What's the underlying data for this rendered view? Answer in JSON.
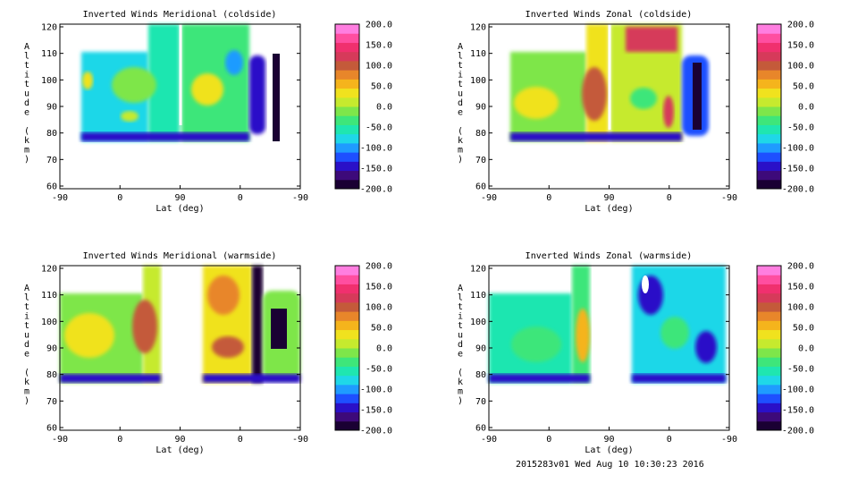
{
  "figure": {
    "footer": "2015283v01 Wed Aug 10 10:30:23 2016",
    "colorbar_ticks": [
      "200.0",
      "150.0",
      "100.0",
      "50.0",
      "0.0",
      "-50.0",
      "-100.0",
      "-150.0",
      "-200.0"
    ],
    "colorbar_colors": [
      "#1a0033",
      "#3d0a7a",
      "#2a10c8",
      "#1e4fff",
      "#1f9bff",
      "#1fd7e8",
      "#1fe6b0",
      "#3ee67a",
      "#7ee64a",
      "#c6ea2e",
      "#f0e21e",
      "#f5b41c",
      "#e8862a",
      "#c45a3a",
      "#d63a5a",
      "#f0306e",
      "#ff4ea0",
      "#ff7ee0"
    ],
    "colorbar_range": [
      -200,
      200
    ]
  },
  "chart_data": [
    {
      "type": "contour",
      "title": "Inverted Winds Meridional (coldside)",
      "xlabel": "Lat (deg)",
      "ylabel": "Altitude (km)",
      "ylabel_chars": [
        "A",
        "l",
        "t",
        "i",
        "t",
        "u",
        "d",
        "e",
        "",
        "(",
        "k",
        "m",
        ")"
      ],
      "x_ticks": [
        "-90",
        "0",
        "90",
        "0",
        "-90"
      ],
      "y_ticks": [
        "120",
        "110",
        "100",
        "90",
        "80",
        "70",
        "60"
      ],
      "ylim": [
        60,
        120
      ],
      "colorbar": {
        "range": [
          -200,
          200
        ],
        "ticks": [
          "200.0",
          "150.0",
          "100.0",
          "50.0",
          "0.0",
          "-50.0",
          "-100.0",
          "-150.0",
          "-200.0"
        ]
      }
    },
    {
      "type": "contour",
      "title": "Inverted Winds Zonal (coldside)",
      "xlabel": "Lat (deg)",
      "ylabel": "Altitude (km)",
      "ylabel_chars": [
        "A",
        "l",
        "t",
        "i",
        "t",
        "u",
        "d",
        "e",
        "",
        "(",
        "k",
        "m",
        ")"
      ],
      "x_ticks": [
        "-90",
        "0",
        "90",
        "0",
        "-90"
      ],
      "y_ticks": [
        "120",
        "110",
        "100",
        "90",
        "80",
        "70",
        "60"
      ],
      "ylim": [
        60,
        120
      ],
      "colorbar": {
        "range": [
          -200,
          200
        ],
        "ticks": [
          "200.0",
          "150.0",
          "100.0",
          "50.0",
          "0.0",
          "-50.0",
          "-100.0",
          "-150.0",
          "-200.0"
        ]
      }
    },
    {
      "type": "contour",
      "title": "Inverted Winds Meridional (warmside)",
      "xlabel": "Lat (deg)",
      "ylabel": "Altitude (km)",
      "ylabel_chars": [
        "A",
        "l",
        "t",
        "i",
        "t",
        "u",
        "d",
        "e",
        "",
        "(",
        "k",
        "m",
        ")"
      ],
      "x_ticks": [
        "-90",
        "0",
        "90",
        "0",
        "-90"
      ],
      "y_ticks": [
        "120",
        "110",
        "100",
        "90",
        "80",
        "70",
        "60"
      ],
      "ylim": [
        60,
        120
      ],
      "colorbar": {
        "range": [
          -200,
          200
        ],
        "ticks": [
          "200.0",
          "150.0",
          "100.0",
          "50.0",
          "0.0",
          "-50.0",
          "-100.0",
          "-150.0",
          "-200.0"
        ]
      }
    },
    {
      "type": "contour",
      "title": "Inverted Winds Zonal (warmside)",
      "xlabel": "Lat (deg)",
      "ylabel": "Altitude (km)",
      "ylabel_chars": [
        "A",
        "l",
        "t",
        "i",
        "t",
        "u",
        "d",
        "e",
        "",
        "(",
        "k",
        "m",
        ")"
      ],
      "x_ticks": [
        "-90",
        "0",
        "90",
        "0",
        "-90"
      ],
      "y_ticks": [
        "120",
        "110",
        "100",
        "90",
        "80",
        "70",
        "60"
      ],
      "ylim": [
        60,
        120
      ],
      "colorbar": {
        "range": [
          -200,
          200
        ],
        "ticks": [
          "200.0",
          "150.0",
          "100.0",
          "50.0",
          "0.0",
          "-50.0",
          "-100.0",
          "-150.0",
          "-200.0"
        ]
      }
    }
  ]
}
